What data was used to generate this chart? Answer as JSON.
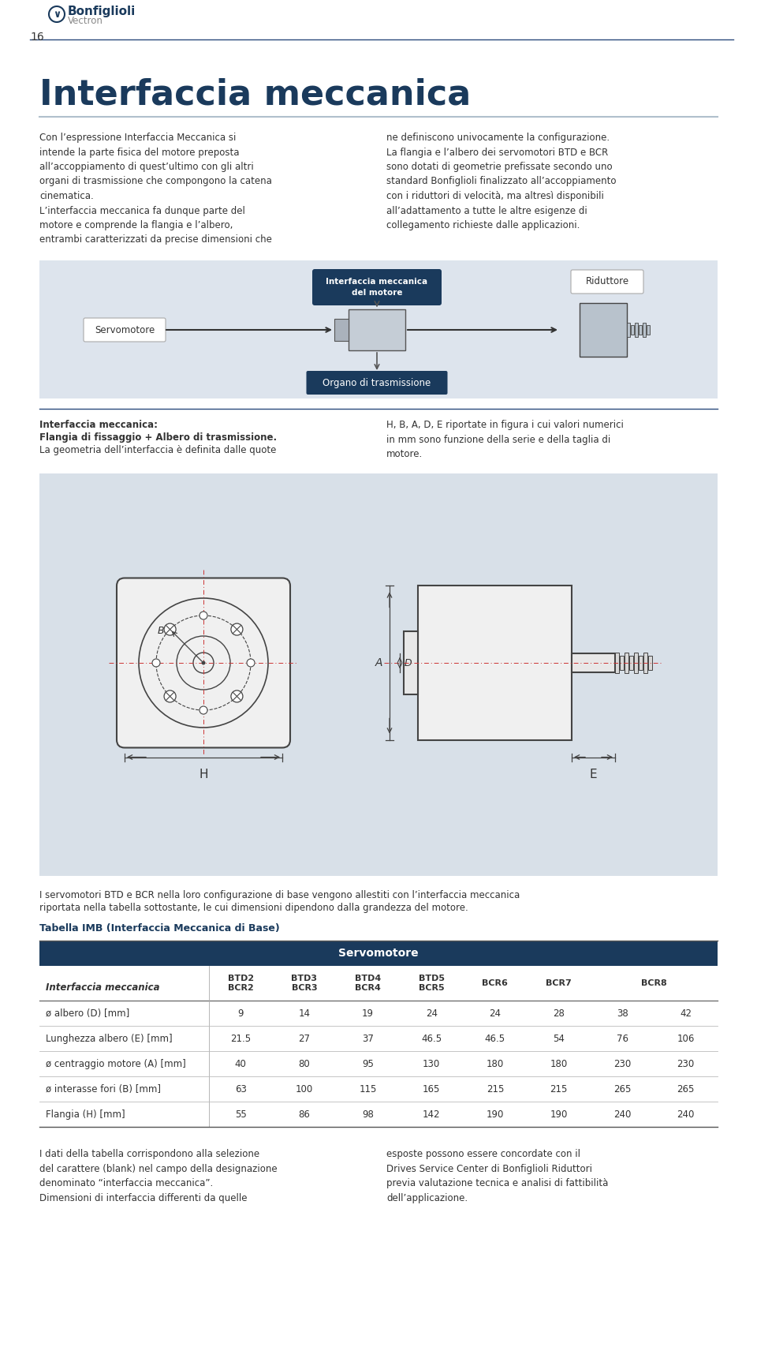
{
  "page_bg": "#ffffff",
  "logo_text": "Bonfiglioli",
  "logo_sub": "Vectron",
  "page_num": "16",
  "title": "Interfaccia meccanica",
  "title_color": "#1a3a5c",
  "body_color": "#333333",
  "body_text_left": "Con l’espressione Interfaccia Meccanica si\nintende la parte fisica del motore preposta\nall’accoppiamento di quest’ultimo con gli altri\norgani di trasmissione che compongono la catena\ncinematica.\nL’interfaccia meccanica fa dunque parte del\nmotore e comprende la flangia e l’albero,\nentrambi caratterizzati da precise dimensioni che",
  "body_text_right": "ne definiscono univocamente la configurazione.\nLa flangia e l’albero dei servomotori BTD e BCR\nsono dotati di geometrie prefissate secondo uno\nstandard Bonfiglioli finalizzato all’accoppiamento\ncon i riduttori di velocità, ma altresì disponibili\nall’adattamento a tutte le altre esigenze di\ncollegamento richieste dalle applicazioni.",
  "diagram_bg": "#dde4ed",
  "diagram_box_color": "#1a3a5c",
  "diagram_box_text": "Interfaccia meccanica\ndel motore",
  "label_servomotore": "Servomotore",
  "label_riduttore": "Riduttore",
  "label_organo": "Organo di trasmissione",
  "section2_left_bold1": "Interfaccia meccanica:",
  "section2_left_bold2": "Flangia di fissaggio + Albero di trasmissione.",
  "section2_left_normal": "La geometria dell’interfaccia è definita dalle quote",
  "section2_right": "H, B, A, D, E riportate in figura i cui valori numerici\nin mm sono funzione della serie e della taglia di\nmotore.",
  "tech_drawing_bg": "#d8e0e8",
  "body_text_btd1": "I servomotori BTD e BCR nella loro configurazione di base vengono allestiti con l’interfaccia meccanica",
  "body_text_btd2": "riportata nella tabella sottostante, le cui dimensioni dipendono dalla grandezza del motore.",
  "table_title": "Tabella IMB (Interfaccia Meccanica di Base)",
  "table_title_color": "#1a3a5c",
  "table_header_bg": "#1a3a5c",
  "table_header_fg": "#ffffff",
  "table_header_main": "Servomotore",
  "table_col_header": "Interfaccia meccanica",
  "col_header_labels": [
    "BTD2\nBCR2",
    "BTD3\nBCR3",
    "BTD4\nBCR4",
    "BTD5\nBCR5",
    "BCR6",
    "BCR7",
    "BCR8"
  ],
  "col_header_spans": [
    1,
    1,
    1,
    1,
    1,
    1,
    2
  ],
  "row_labels": [
    "ø albero (D) [mm]",
    "Lunghezza albero (E) [mm]",
    "ø centraggio motore (A) [mm]",
    "ø interasse fori (B) [mm]",
    "Flangia (H) [mm]"
  ],
  "row_data": [
    [
      "9",
      "14",
      "19",
      "24",
      "24",
      "28",
      "38",
      "42"
    ],
    [
      "21.5",
      "27",
      "37",
      "46.5",
      "46.5",
      "54",
      "76",
      "106"
    ],
    [
      "40",
      "80",
      "95",
      "130",
      "180",
      "180",
      "230",
      "230"
    ],
    [
      "63",
      "100",
      "115",
      "165",
      "215",
      "215",
      "265",
      "265"
    ],
    [
      "55",
      "86",
      "98",
      "142",
      "190",
      "190",
      "240",
      "240"
    ]
  ],
  "footer_left": "I dati della tabella corrispondono alla selezione\ndel carattere (blank) nel campo della designazione\ndenominato “interfaccia meccanica”.\nDimensioni di interfaccia differenti da quelle",
  "footer_right": "esposte possono essere concordate con il\nDrives Service Center di Bonfiglioli Riduttori\nprevia valutazione tecnica e analisi di fattibilità\ndell’applicazione."
}
